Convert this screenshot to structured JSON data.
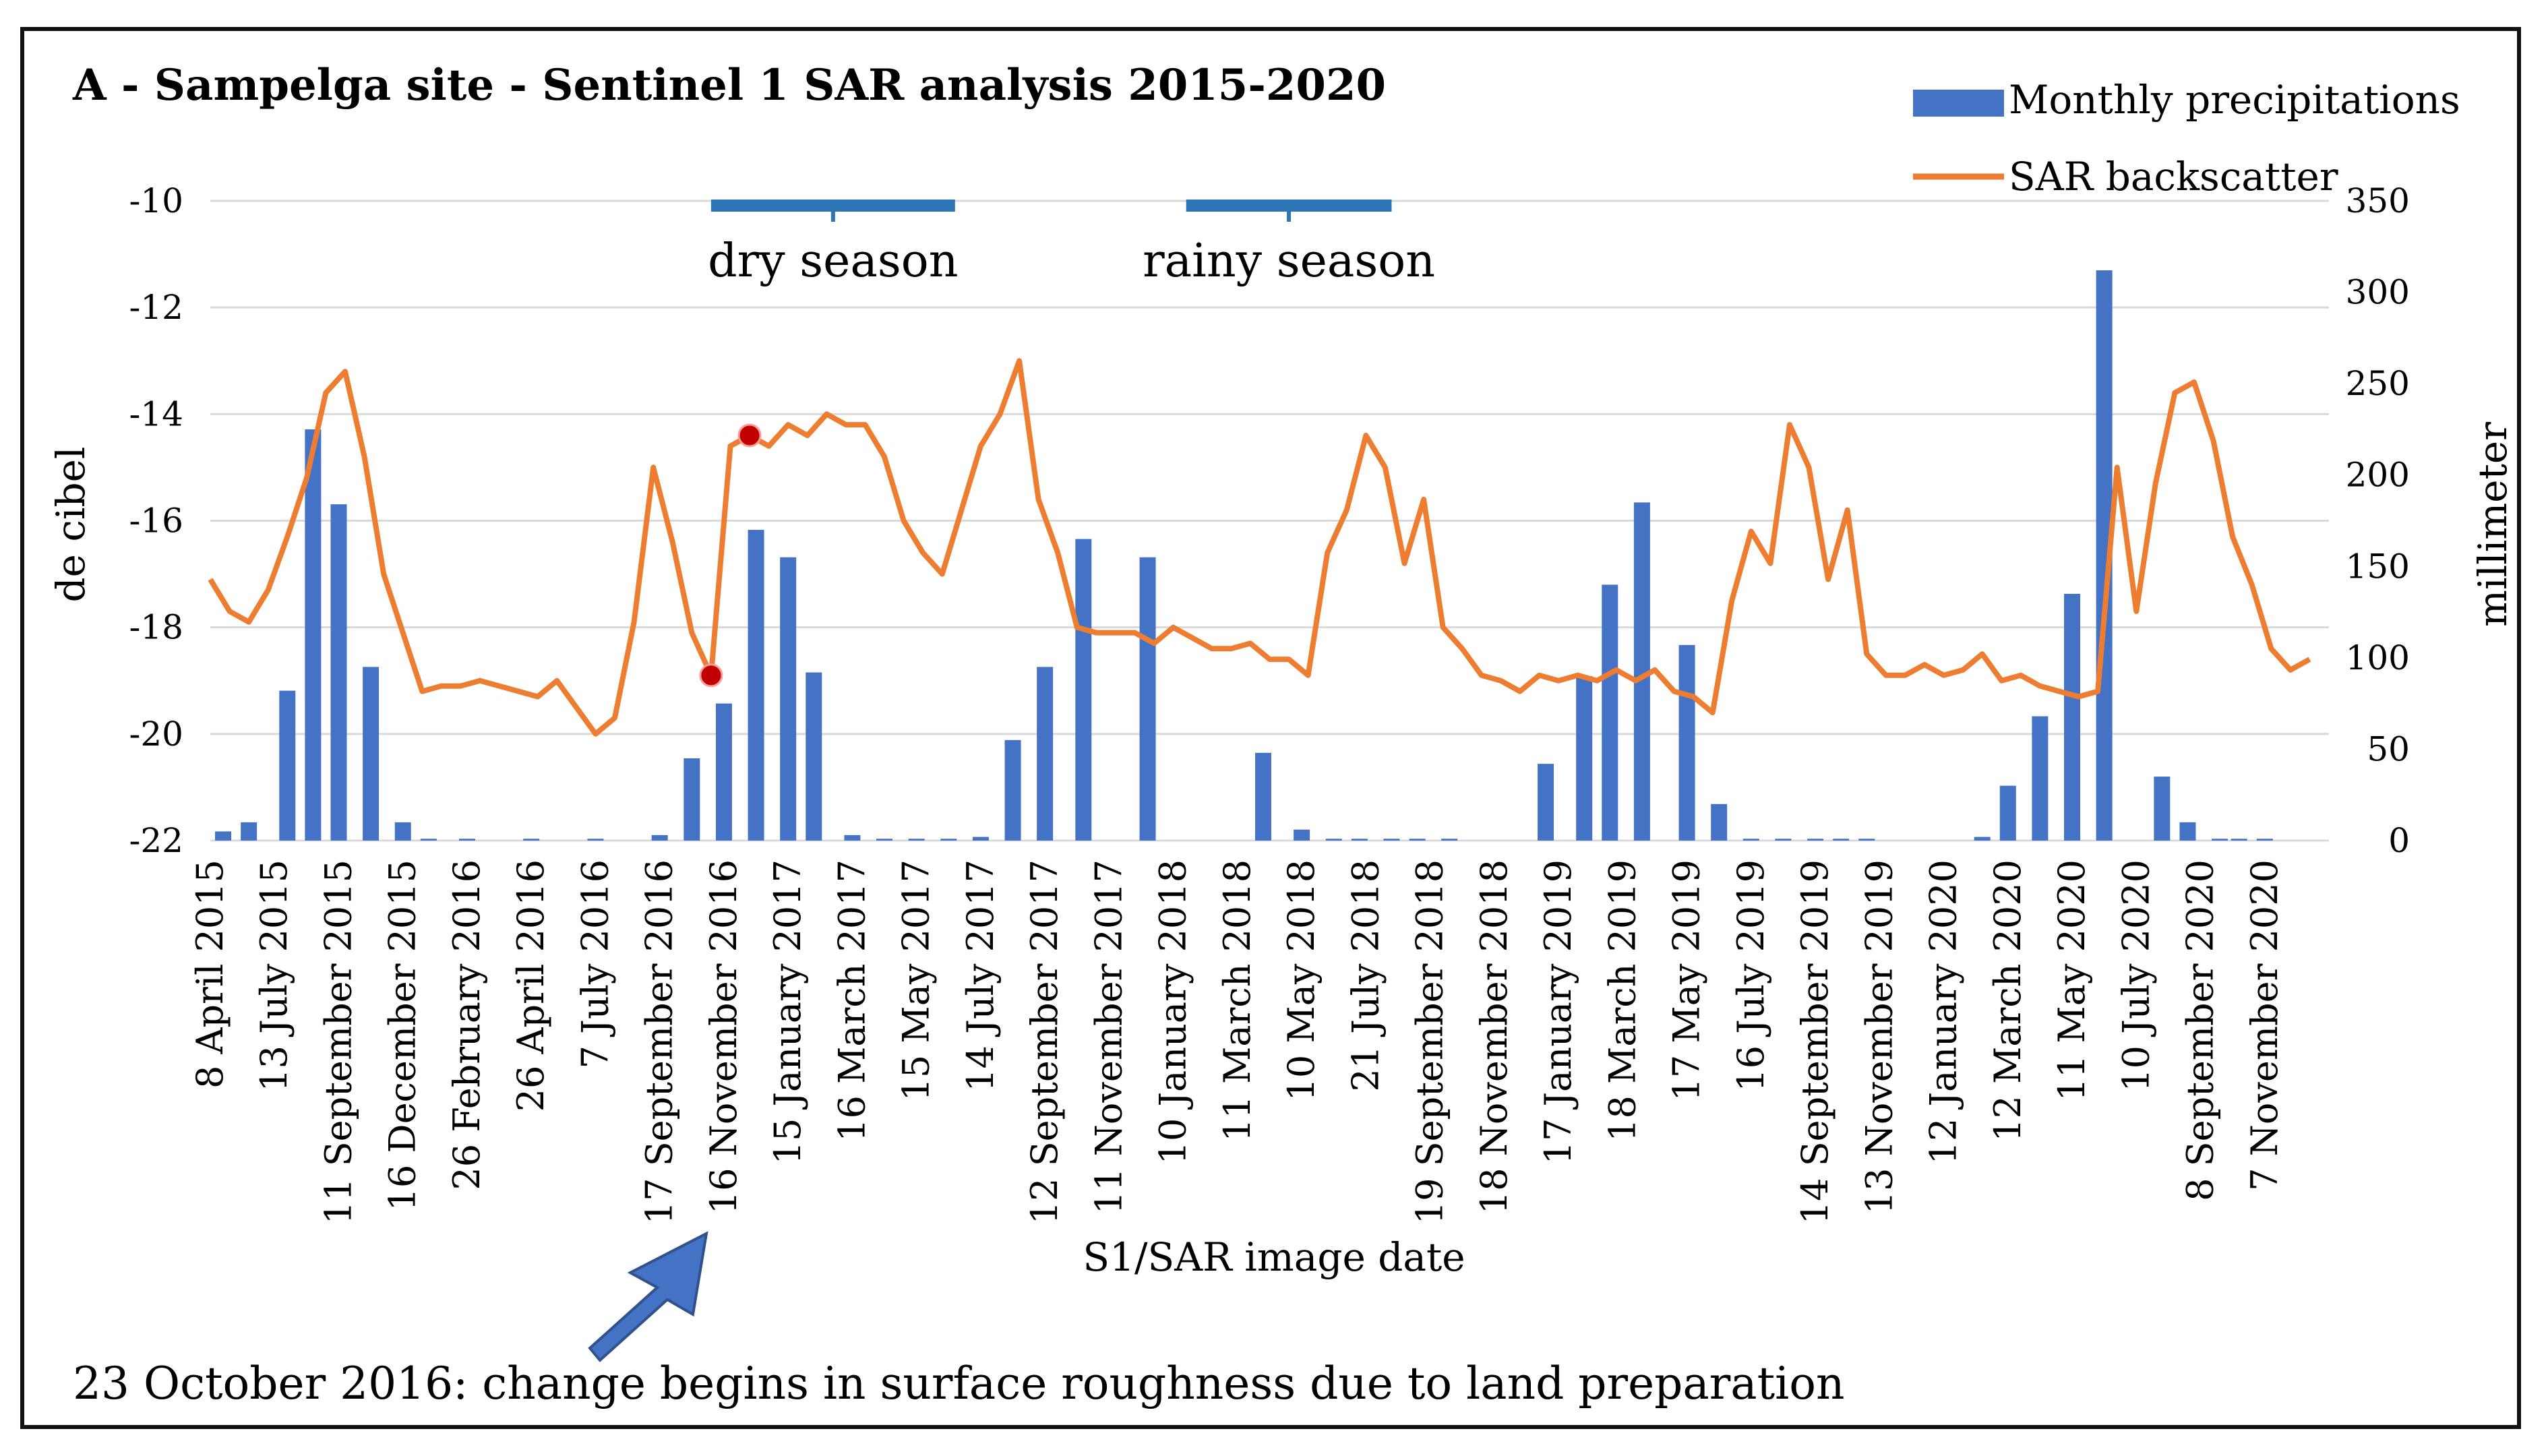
{
  "chart_data": {
    "type": "bar+line",
    "title": "A - Sampelga site - Sentinel 1 SAR analysis 2015-2020",
    "xlabel": "S1/SAR image  date",
    "ylabel_left": "de cibel",
    "ylabel_right": "millimeter",
    "y_left_lim": [
      -22,
      -10
    ],
    "y_left_ticks": [
      "-10",
      "-12",
      "-14",
      "-16",
      "-18",
      "-20",
      "-22"
    ],
    "y_right_lim": [
      0,
      350
    ],
    "y_right_ticks": [
      "350",
      "300",
      "250",
      "200",
      "150",
      "100",
      "50",
      "0"
    ],
    "x_tick_labels": [
      "8 April 2015",
      "13 July 2015",
      "11 September 2015",
      "16 December 2015",
      "26 February 2016",
      "26 April 2016",
      "7 July 2016",
      "17 September 2016",
      "16 November 2016",
      "15 January 2017",
      "16 March 2017",
      "15 May 2017",
      "14 July 2017",
      "12 September 2017",
      "11 November 2017",
      "10 January 2018",
      "11 March 2018",
      "10 May 2018",
      "21 July 2018",
      "19 September 2018",
      "18 November 2018",
      "17 January 2019",
      "18 March 2019",
      "17 May 2019",
      "16 July 2019",
      "14 September 2019",
      "13 November 2019",
      "12 January 2020",
      "12 March 2020",
      "11 May 2020",
      "10 July 2020",
      "8 September 2020",
      "7 November 2020"
    ],
    "legend": [
      {
        "name": "Monthly precipitations",
        "color": "#4472C4"
      },
      {
        "name": "SAR backscatter",
        "color": "#ED7D31"
      }
    ],
    "series": [
      {
        "name": "Monthly precipitations",
        "type": "bar",
        "axis": "right",
        "unit": "millimeter",
        "x": [
          0.2,
          0.6,
          1.2,
          1.6,
          2.0,
          2.5,
          3.0,
          3.4,
          4.0,
          5.0,
          6.0,
          7.0,
          7.5,
          8.0,
          8.5,
          9.0,
          9.4,
          10.0,
          10.5,
          11.0,
          11.5,
          12.0,
          12.5,
          13.0,
          13.6,
          14.6,
          16.4,
          17.0,
          17.5,
          17.9,
          18.4,
          18.8,
          19.3,
          20.8,
          21.4,
          21.8,
          22.3,
          23.0,
          23.5,
          24.0,
          24.5,
          25.0,
          25.4,
          25.8,
          27.6,
          28.0,
          28.5,
          29.0,
          29.5,
          30.4,
          30.8,
          31.3,
          31.6,
          32.0
        ],
        "values": [
          5,
          10,
          82,
          225,
          184,
          95,
          10,
          1,
          1,
          1,
          1,
          3,
          45,
          75,
          170,
          155,
          92,
          3,
          1,
          1,
          1,
          2,
          55,
          95,
          165,
          155,
          48,
          6,
          1,
          1,
          1,
          1,
          1,
          42,
          90,
          140,
          185,
          107,
          20,
          1,
          1,
          1,
          1,
          1,
          2,
          30,
          68,
          135,
          312,
          35,
          10,
          1,
          1,
          1
        ]
      },
      {
        "name": "SAR backscatter",
        "type": "line",
        "axis": "left",
        "unit": "decibel",
        "x": [
          0,
          0.3,
          0.6,
          0.9,
          1.2,
          1.5,
          1.8,
          2.1,
          2.4,
          2.7,
          3.0,
          3.3,
          3.6,
          3.9,
          4.2,
          4.5,
          4.8,
          5.1,
          5.4,
          5.7,
          6.0,
          6.3,
          6.6,
          6.9,
          7.2,
          7.5,
          7.8,
          8.1,
          8.4,
          8.7,
          9.0,
          9.3,
          9.6,
          9.9,
          10.2,
          10.5,
          10.8,
          11.1,
          11.4,
          11.7,
          12.0,
          12.3,
          12.6,
          12.9,
          13.2,
          13.5,
          13.8,
          14.1,
          14.4,
          14.7,
          15.0,
          15.3,
          15.6,
          15.9,
          16.2,
          16.5,
          16.8,
          17.1,
          17.4,
          17.7,
          18.0,
          18.3,
          18.6,
          18.9,
          19.2,
          19.5,
          19.8,
          20.1,
          20.4,
          20.7,
          21.0,
          21.3,
          21.6,
          21.9,
          22.2,
          22.5,
          22.8,
          23.1,
          23.4,
          23.7,
          24.0,
          24.3,
          24.6,
          24.9,
          25.2,
          25.5,
          25.8,
          26.1,
          26.4,
          26.7,
          27.0,
          27.3,
          27.6,
          27.9,
          28.2,
          28.5,
          28.8,
          29.1,
          29.4,
          29.7,
          30.0,
          30.3,
          30.6,
          30.9,
          31.2,
          31.5,
          31.8,
          32.1,
          32.4,
          32.7
        ],
        "values": [
          -17.1,
          -17.7,
          -17.9,
          -17.3,
          -16.3,
          -15.2,
          -13.6,
          -13.2,
          -14.8,
          -17.0,
          -18.1,
          -19.2,
          -19.1,
          -19.1,
          -19.0,
          -19.1,
          -19.2,
          -19.3,
          -19.0,
          -19.5,
          -20.0,
          -19.7,
          -17.9,
          -15.0,
          -16.4,
          -18.1,
          -18.9,
          -14.6,
          -14.4,
          -14.6,
          -14.2,
          -14.4,
          -14.0,
          -14.2,
          -14.2,
          -14.8,
          -16.0,
          -16.6,
          -17.0,
          -15.8,
          -14.6,
          -14.0,
          -13.0,
          -15.6,
          -16.6,
          -18.0,
          -18.1,
          -18.1,
          -18.1,
          -18.3,
          -18.0,
          -18.2,
          -18.4,
          -18.4,
          -18.3,
          -18.6,
          -18.6,
          -18.9,
          -16.6,
          -15.8,
          -14.4,
          -15.0,
          -16.8,
          -15.6,
          -18.0,
          -18.4,
          -18.9,
          -19.0,
          -19.2,
          -18.9,
          -19.0,
          -18.9,
          -19.0,
          -18.8,
          -19.0,
          -18.8,
          -19.2,
          -19.3,
          -19.6,
          -17.5,
          -16.2,
          -16.8,
          -14.2,
          -15.0,
          -17.1,
          -15.8,
          -18.5,
          -18.9,
          -18.9,
          -18.7,
          -18.9,
          -18.8,
          -18.5,
          -19.0,
          -18.9,
          -19.1,
          -19.2,
          -19.3,
          -19.2,
          -15.0,
          -17.7,
          -15.3,
          -13.6,
          -13.4,
          -14.5,
          -16.3,
          -17.2,
          -18.4,
          -18.8,
          -18.6
        ],
        "highlight_points": [
          {
            "x": 7.8,
            "value": -18.9,
            "color": "#C00000"
          },
          {
            "x": 8.4,
            "value": -14.4,
            "color": "#C00000"
          }
        ]
      }
    ],
    "season_markers": [
      {
        "label": "dry season",
        "x_start": 7.8,
        "x_end": 11.6
      },
      {
        "label": "rainy season",
        "x_start": 15.2,
        "x_end": 18.4
      }
    ],
    "annotation": "23 October 2016: change begins in surface roughness due to land preparation"
  }
}
